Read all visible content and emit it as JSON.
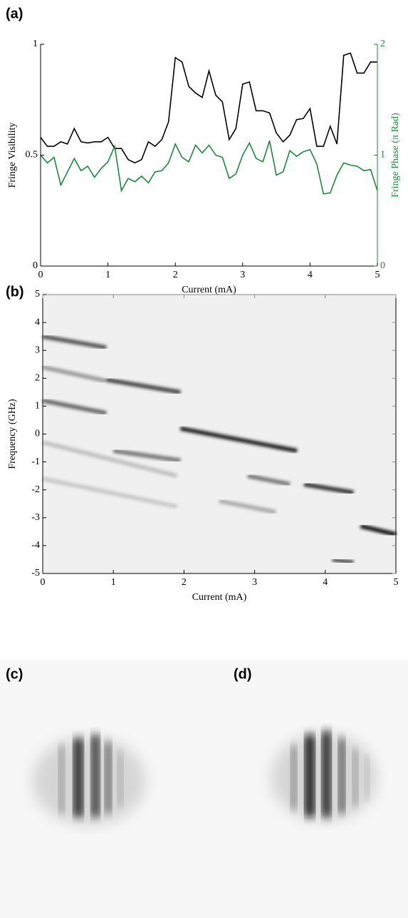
{
  "chart_data": [
    {
      "type": "line",
      "label": "(a)",
      "xlabel": "Current (mA)",
      "ylabel": "Fringe Visibility",
      "y2label": "Fringe Phase (π Rad)",
      "x": [
        0,
        0.1,
        0.2,
        0.3,
        0.4,
        0.5,
        0.6,
        0.7,
        0.8,
        0.9,
        1,
        1.1,
        1.2,
        1.3,
        1.4,
        1.5,
        1.6,
        1.7,
        1.8,
        1.9,
        2,
        2.1,
        2.2,
        2.3,
        2.4,
        2.5,
        2.6,
        2.7,
        2.8,
        2.9,
        3,
        3.1,
        3.2,
        3.3,
        3.4,
        3.5,
        3.6,
        3.7,
        3.8,
        3.9,
        4,
        4.1,
        4.2,
        4.3,
        4.4,
        4.5,
        4.6,
        4.7,
        4.8,
        4.9,
        5
      ],
      "series": [
        {
          "color": "#000000",
          "values": [
            0.58,
            0.54,
            0.54,
            0.56,
            0.55,
            0.62,
            0.56,
            0.555,
            0.56,
            0.56,
            0.58,
            0.53,
            0.53,
            0.48,
            0.465,
            0.48,
            0.56,
            0.54,
            0.57,
            0.65,
            0.94,
            0.92,
            0.81,
            0.78,
            0.76,
            0.88,
            0.77,
            0.74,
            0.57,
            0.62,
            0.82,
            0.83,
            0.7,
            0.7,
            0.69,
            0.6,
            0.56,
            0.59,
            0.66,
            0.665,
            0.71,
            0.54,
            0.54,
            0.63,
            0.55,
            0.95,
            0.96,
            0.87,
            0.87,
            0.92,
            0.92
          ]
        },
        {
          "color": "#1a8a3a",
          "axis": "y2",
          "values": [
            1,
            0.93,
            0.98,
            0.73,
            0.85,
            0.97,
            0.86,
            0.9,
            0.8,
            0.88,
            0.94,
            1.08,
            0.68,
            0.79,
            0.76,
            0.81,
            0.75,
            0.85,
            0.86,
            0.93,
            1.1,
            0.98,
            0.94,
            1.09,
            1.02,
            1.09,
            1,
            0.98,
            0.79,
            0.83,
            1,
            1.11,
            0.97,
            0.94,
            1.13,
            0.82,
            0.85,
            1.04,
            0.99,
            1.03,
            1.05,
            0.92,
            0.65,
            0.66,
            0.82,
            0.93,
            0.91,
            0.9,
            0.86,
            0.87,
            0.68
          ]
        }
      ],
      "xlim": [
        0,
        5
      ],
      "xticks": [
        0,
        1,
        2,
        3,
        4,
        5
      ],
      "ylim": [
        0,
        1
      ],
      "yticks": [
        0,
        0.5,
        1
      ],
      "y2lim": [
        0,
        2
      ],
      "y2ticks": [
        0,
        1,
        2
      ],
      "y2_color": "#1a8a3a"
    },
    {
      "type": "spectrogram",
      "label": "(b)",
      "xlabel": "Current (mA)",
      "ylabel": "Frequency (GHz)",
      "background": "#f0f0f0",
      "series": [
        {
          "color": "#555555",
          "x": [
            0,
            0.9
          ],
          "values": [
            3.5,
            3.1
          ]
        },
        {
          "color": "#9a9a9a",
          "x": [
            0,
            0.9
          ],
          "values": [
            2.4,
            1.9
          ]
        },
        {
          "color": "#444444",
          "x": [
            0.9,
            1.95
          ],
          "values": [
            1.95,
            1.5
          ]
        },
        {
          "color": "#666666",
          "x": [
            0,
            0.9
          ],
          "values": [
            1.2,
            0.75
          ]
        },
        {
          "color": "#777777",
          "x": [
            1,
            1.95
          ],
          "values": [
            -0.6,
            -0.95
          ]
        },
        {
          "color": "#222222",
          "x": [
            1.95,
            3.6
          ],
          "values": [
            0.2,
            -0.6
          ]
        },
        {
          "color": "#777777",
          "x": [
            2.9,
            3.5
          ],
          "values": [
            -1.5,
            -1.8
          ]
        },
        {
          "color": "#333333",
          "x": [
            3.7,
            4.4
          ],
          "values": [
            -1.8,
            -2.1
          ]
        },
        {
          "color": "#111111",
          "x": [
            4.5,
            5
          ],
          "values": [
            -3.3,
            -3.6
          ]
        },
        {
          "color": "#555555",
          "x": [
            4.1,
            4.4
          ],
          "values": [
            -4.5,
            -4.6
          ]
        },
        {
          "color": "#aaaaaa",
          "x": [
            2.5,
            3.3
          ],
          "values": [
            -2.4,
            -2.8
          ]
        },
        {
          "color": "#c0c0c0",
          "x": [
            0,
            1.9
          ],
          "values": [
            -0.3,
            -1.5
          ]
        },
        {
          "color": "#c8c8c8",
          "x": [
            0,
            1.9
          ],
          "values": [
            -1.6,
            -2.6
          ]
        }
      ],
      "xlim": [
        0,
        5
      ],
      "xticks": [
        0,
        1,
        2,
        3,
        4,
        5
      ],
      "ylim": [
        -5,
        5
      ],
      "yticks": [
        -5,
        -4,
        -3,
        -2,
        -1,
        0,
        1,
        2,
        3,
        4,
        5
      ]
    }
  ],
  "images": [
    {
      "label": "(c)"
    },
    {
      "label": "(d)"
    }
  ]
}
